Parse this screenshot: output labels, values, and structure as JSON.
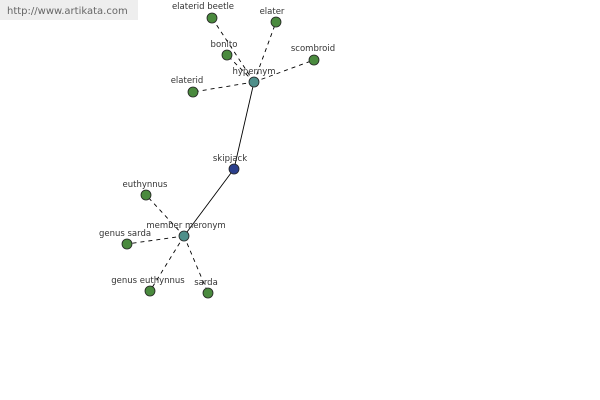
{
  "watermark": "http://www.artikata.com",
  "nodes": [
    {
      "label": "skipjack"
    },
    {
      "label": "hypernym"
    },
    {
      "label": "member meronym"
    },
    {
      "label": "elaterid beetle"
    },
    {
      "label": "elater"
    },
    {
      "label": "bonito"
    },
    {
      "label": "scombroid"
    },
    {
      "label": "elaterid"
    },
    {
      "label": "euthynnus"
    },
    {
      "label": "genus sarda"
    },
    {
      "label": "genus euthynnus"
    },
    {
      "label": "sarda"
    }
  ]
}
